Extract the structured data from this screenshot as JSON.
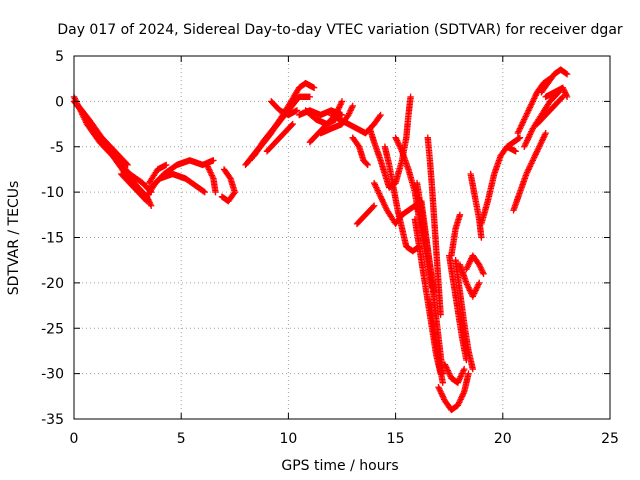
{
  "chart_data": {
    "type": "scatter",
    "title": "Day 017 of 2024, Sidereal Day-to-day VTEC variation (SDTVAR) for receiver dgar",
    "xlabel": "GPS time / hours",
    "ylabel": "SDTVAR / TECUs",
    "xlim": [
      0,
      25
    ],
    "ylim": [
      -35,
      5
    ],
    "xticks": [
      0,
      5,
      10,
      15,
      20,
      25
    ],
    "yticks": [
      -35,
      -30,
      -25,
      -20,
      -15,
      -10,
      -5,
      0,
      5
    ],
    "grid": true,
    "marker": "plus",
    "color": "#ff0000",
    "series_tracks": [
      [
        [
          0.0,
          0.5
        ],
        [
          0.6,
          -2.5
        ],
        [
          1.2,
          -4.5
        ],
        [
          1.8,
          -6.0
        ],
        [
          2.4,
          -8.0
        ],
        [
          3.0,
          -9.5
        ],
        [
          3.4,
          -10.5
        ],
        [
          3.6,
          -11.5
        ]
      ],
      [
        [
          0.0,
          0.0
        ],
        [
          0.5,
          -1.5
        ],
        [
          1.0,
          -3.5
        ],
        [
          1.5,
          -5.0
        ],
        [
          2.0,
          -6.5
        ],
        [
          2.6,
          -8.0
        ],
        [
          3.2,
          -9.0
        ],
        [
          3.6,
          -10.0
        ]
      ],
      [
        [
          0.2,
          -0.5
        ],
        [
          0.7,
          -2.0
        ],
        [
          1.3,
          -4.0
        ],
        [
          1.9,
          -5.5
        ],
        [
          2.5,
          -7.0
        ]
      ],
      [
        [
          2.2,
          -8.0
        ],
        [
          2.6,
          -9.0
        ],
        [
          3.0,
          -10.0
        ],
        [
          3.4,
          -11.0
        ]
      ],
      [
        [
          3.4,
          -10.5
        ],
        [
          3.8,
          -9.0
        ],
        [
          4.2,
          -8.0
        ],
        [
          4.8,
          -7.0
        ],
        [
          5.4,
          -6.5
        ],
        [
          6.0,
          -7.0
        ],
        [
          6.5,
          -6.5
        ]
      ],
      [
        [
          3.6,
          -9.5
        ],
        [
          4.0,
          -8.5
        ],
        [
          4.6,
          -8.0
        ],
        [
          5.2,
          -8.5
        ],
        [
          5.8,
          -9.5
        ],
        [
          6.1,
          -10.0
        ]
      ],
      [
        [
          3.5,
          -9.0
        ],
        [
          3.9,
          -7.5
        ],
        [
          4.3,
          -7.0
        ]
      ],
      [
        [
          6.2,
          -7.0
        ],
        [
          6.5,
          -8.5
        ],
        [
          6.6,
          -10.0
        ]
      ],
      [
        [
          7.0,
          -7.5
        ],
        [
          7.3,
          -8.5
        ],
        [
          7.5,
          -10.0
        ],
        [
          7.2,
          -11.0
        ],
        [
          6.9,
          -10.5
        ]
      ],
      [
        [
          8.0,
          -7.0
        ],
        [
          8.5,
          -5.5
        ],
        [
          9.0,
          -4.0
        ],
        [
          9.5,
          -2.5
        ],
        [
          10.0,
          -1.0
        ],
        [
          10.5,
          0.5
        ],
        [
          11.0,
          0.5
        ]
      ],
      [
        [
          8.2,
          -6.5
        ],
        [
          8.7,
          -5.0
        ],
        [
          9.2,
          -3.5
        ],
        [
          9.6,
          -2.0
        ],
        [
          10.0,
          -0.5
        ],
        [
          10.5,
          1.5
        ],
        [
          10.8,
          2.0
        ],
        [
          11.2,
          1.5
        ]
      ],
      [
        [
          8.4,
          -6.0
        ],
        [
          8.8,
          -4.5
        ],
        [
          9.3,
          -3.0
        ],
        [
          9.8,
          -1.5
        ]
      ],
      [
        [
          9.0,
          -5.5
        ],
        [
          9.4,
          -4.5
        ],
        [
          9.8,
          -3.5
        ],
        [
          10.2,
          -2.5
        ]
      ],
      [
        [
          9.2,
          0.0
        ],
        [
          9.6,
          -1.0
        ],
        [
          10.0,
          -1.5
        ],
        [
          10.4,
          -1.0
        ]
      ],
      [
        [
          10.5,
          -1.5
        ],
        [
          11.0,
          -1.0
        ],
        [
          11.5,
          -1.5
        ],
        [
          12.0,
          -1.0
        ],
        [
          12.5,
          -1.5
        ]
      ],
      [
        [
          10.8,
          -1.0
        ],
        [
          11.3,
          -2.0
        ],
        [
          11.8,
          -2.5
        ],
        [
          12.2,
          -2.0
        ]
      ],
      [
        [
          11.5,
          -3.5
        ],
        [
          12.0,
          -3.0
        ],
        [
          12.5,
          -2.5
        ],
        [
          12.8,
          -1.5
        ],
        [
          13.0,
          -0.5
        ]
      ],
      [
        [
          11.0,
          -4.5
        ],
        [
          11.4,
          -3.5
        ],
        [
          11.8,
          -2.5
        ],
        [
          12.2,
          -1.5
        ],
        [
          12.5,
          0.0
        ]
      ],
      [
        [
          12.0,
          -1.5
        ],
        [
          12.4,
          -2.0
        ],
        [
          12.8,
          -2.5
        ],
        [
          13.2,
          -3.0
        ],
        [
          13.6,
          -3.5
        ],
        [
          14.0,
          -2.5
        ],
        [
          14.3,
          -1.5
        ]
      ],
      [
        [
          13.0,
          -4.0
        ],
        [
          13.3,
          -5.0
        ],
        [
          13.5,
          -6.5
        ],
        [
          13.7,
          -7.0
        ]
      ],
      [
        [
          13.2,
          -13.5
        ],
        [
          13.6,
          -12.5
        ],
        [
          14.0,
          -11.5
        ]
      ],
      [
        [
          13.8,
          -3.0
        ],
        [
          14.0,
          -4.5
        ],
        [
          14.3,
          -6.5
        ],
        [
          14.5,
          -8.0
        ],
        [
          14.7,
          -9.5
        ],
        [
          15.0,
          -9.0
        ],
        [
          15.3,
          -6.5
        ],
        [
          15.5,
          -4.0
        ],
        [
          15.6,
          -1.5
        ],
        [
          15.7,
          0.5
        ]
      ],
      [
        [
          14.5,
          -5.0
        ],
        [
          14.7,
          -7.0
        ],
        [
          14.9,
          -9.5
        ],
        [
          15.1,
          -12.0
        ],
        [
          15.3,
          -14.0
        ],
        [
          15.5,
          -16.0
        ],
        [
          15.8,
          -16.5
        ],
        [
          16.1,
          -16.0
        ]
      ],
      [
        [
          14.0,
          -9.0
        ],
        [
          14.3,
          -10.5
        ],
        [
          14.6,
          -12.0
        ],
        [
          15.0,
          -13.5
        ],
        [
          15.3,
          -12.5
        ],
        [
          15.6,
          -12.0
        ],
        [
          15.9,
          -11.5
        ],
        [
          16.2,
          -12.5
        ]
      ],
      [
        [
          15.0,
          -4.0
        ],
        [
          15.3,
          -5.5
        ],
        [
          15.6,
          -7.5
        ],
        [
          15.9,
          -10.0
        ],
        [
          16.1,
          -13.0
        ],
        [
          16.3,
          -15.5
        ],
        [
          16.5,
          -18.0
        ],
        [
          16.7,
          -20.5
        ]
      ],
      [
        [
          16.0,
          -9.0
        ],
        [
          16.2,
          -12.0
        ],
        [
          16.4,
          -15.0
        ],
        [
          16.6,
          -18.0
        ],
        [
          16.8,
          -21.0
        ]
      ],
      [
        [
          15.9,
          -13.0
        ],
        [
          16.1,
          -16.0
        ],
        [
          16.3,
          -19.0
        ],
        [
          16.5,
          -22.0
        ],
        [
          16.7,
          -25.0
        ],
        [
          16.9,
          -28.0
        ],
        [
          17.1,
          -30.0
        ]
      ],
      [
        [
          16.2,
          -11.0
        ],
        [
          16.4,
          -14.5
        ],
        [
          16.6,
          -18.0
        ],
        [
          16.8,
          -22.0
        ],
        [
          17.0,
          -26.0
        ],
        [
          17.2,
          -30.0
        ]
      ],
      [
        [
          16.5,
          -4.0
        ],
        [
          16.6,
          -6.5
        ],
        [
          16.7,
          -9.5
        ],
        [
          16.8,
          -13.0
        ],
        [
          16.9,
          -16.5
        ],
        [
          17.0,
          -20.0
        ],
        [
          17.1,
          -23.5
        ]
      ],
      [
        [
          16.6,
          -22.0
        ],
        [
          16.8,
          -25.5
        ],
        [
          17.0,
          -28.5
        ],
        [
          17.2,
          -31.0
        ]
      ],
      [
        [
          17.0,
          -31.5
        ],
        [
          17.3,
          -33.0
        ],
        [
          17.6,
          -34.0
        ],
        [
          17.9,
          -33.5
        ],
        [
          18.2,
          -32.0
        ],
        [
          18.4,
          -30.0
        ]
      ],
      [
        [
          17.3,
          -29.0
        ],
        [
          17.6,
          -30.5
        ],
        [
          17.9,
          -31.0
        ],
        [
          18.2,
          -29.5
        ]
      ],
      [
        [
          17.5,
          -17.0
        ],
        [
          17.7,
          -20.0
        ],
        [
          17.9,
          -23.0
        ],
        [
          18.1,
          -26.0
        ],
        [
          18.3,
          -28.5
        ]
      ],
      [
        [
          17.8,
          -17.5
        ],
        [
          18.0,
          -21.0
        ],
        [
          18.2,
          -24.5
        ],
        [
          18.4,
          -27.5
        ],
        [
          18.6,
          -29.5
        ]
      ],
      [
        [
          18.0,
          -18.0
        ],
        [
          18.3,
          -20.0
        ],
        [
          18.6,
          -21.5
        ],
        [
          18.9,
          -20.0
        ]
      ],
      [
        [
          18.3,
          -18.5
        ],
        [
          18.6,
          -17.0
        ],
        [
          18.9,
          -18.0
        ],
        [
          19.1,
          -19.0
        ]
      ],
      [
        [
          18.5,
          -8.0
        ],
        [
          18.7,
          -10.5
        ],
        [
          18.9,
          -13.0
        ],
        [
          19.0,
          -15.0
        ]
      ],
      [
        [
          17.6,
          -17.0
        ],
        [
          17.8,
          -14.0
        ],
        [
          18.0,
          -12.5
        ]
      ],
      [
        [
          19.0,
          -13.5
        ],
        [
          19.3,
          -11.0
        ],
        [
          19.6,
          -8.0
        ],
        [
          19.9,
          -6.0
        ],
        [
          20.2,
          -5.0
        ],
        [
          20.6,
          -5.5
        ]
      ],
      [
        [
          20.2,
          -5.0
        ],
        [
          20.5,
          -4.5
        ],
        [
          20.8,
          -4.0
        ]
      ],
      [
        [
          20.5,
          -12.0
        ],
        [
          20.8,
          -10.0
        ],
        [
          21.1,
          -8.0
        ],
        [
          21.4,
          -6.5
        ],
        [
          21.7,
          -5.0
        ],
        [
          22.0,
          -3.5
        ]
      ],
      [
        [
          20.7,
          -3.5
        ],
        [
          21.0,
          -2.0
        ],
        [
          21.3,
          -0.5
        ],
        [
          21.6,
          1.0
        ],
        [
          21.9,
          2.0
        ],
        [
          22.2,
          2.5
        ]
      ],
      [
        [
          21.0,
          -5.0
        ],
        [
          21.4,
          -3.0
        ],
        [
          21.8,
          -1.5
        ],
        [
          22.2,
          0.0
        ],
        [
          22.6,
          1.0
        ]
      ],
      [
        [
          21.6,
          -2.5
        ],
        [
          22.0,
          -1.5
        ],
        [
          22.4,
          -0.5
        ],
        [
          22.8,
          0.5
        ]
      ],
      [
        [
          21.8,
          1.0
        ],
        [
          22.1,
          2.0
        ],
        [
          22.4,
          3.0
        ],
        [
          22.7,
          3.5
        ],
        [
          23.0,
          3.0
        ]
      ],
      [
        [
          22.0,
          0.5
        ],
        [
          22.4,
          1.0
        ],
        [
          22.8,
          1.5
        ],
        [
          23.0,
          0.5
        ]
      ]
    ]
  }
}
